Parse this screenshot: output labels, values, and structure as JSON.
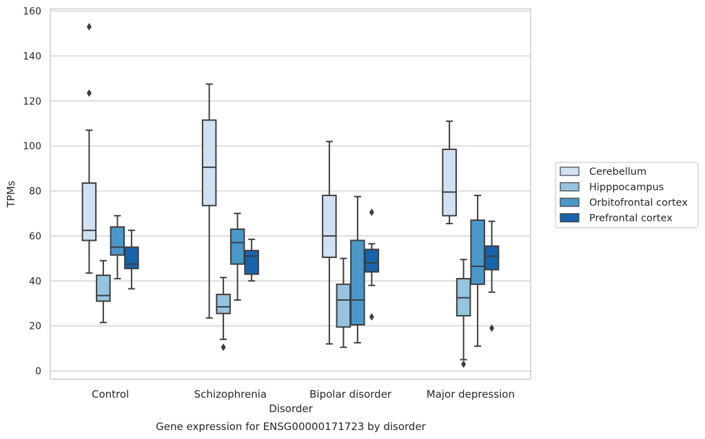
{
  "chart_data": {
    "type": "box",
    "title": "",
    "caption": "Gene expression for ENSG00000171723 by disorder",
    "xlabel": "Disorder",
    "ylabel": "TPMs",
    "ylim": [
      -4,
      161
    ],
    "yticks": [
      0,
      20,
      40,
      60,
      80,
      100,
      120,
      140,
      160
    ],
    "grid": "horizontal",
    "legend_position": "right",
    "categories": [
      "Control",
      "Schizophrenia",
      "Bipolar disorder",
      "Major depression"
    ],
    "series": [
      {
        "name": "Cerebellum",
        "color": "#d0e1f2",
        "boxes": [
          {
            "whislo": 43.5,
            "q1": 58,
            "med": 62.5,
            "q3": 83.5,
            "whishi": 107,
            "fliers": [
              123.5,
              153
            ]
          },
          {
            "whislo": 23.5,
            "q1": 73.5,
            "med": 90.5,
            "q3": 111.5,
            "whishi": 127.5,
            "fliers": []
          },
          {
            "whislo": 12,
            "q1": 50.5,
            "med": 60,
            "q3": 78,
            "whishi": 102,
            "fliers": []
          },
          {
            "whislo": 65.5,
            "q1": 69,
            "med": 79.5,
            "q3": 98.5,
            "whishi": 111,
            "fliers": []
          }
        ]
      },
      {
        "name": "Hipppocampus",
        "color": "#94c4df",
        "boxes": [
          {
            "whislo": 21.5,
            "q1": 31,
            "med": 33.5,
            "q3": 42.5,
            "whishi": 49,
            "fliers": []
          },
          {
            "whislo": 14,
            "q1": 25.5,
            "med": 28.5,
            "q3": 34,
            "whishi": 41.5,
            "fliers": [
              10.5
            ]
          },
          {
            "whislo": 10.5,
            "q1": 19.5,
            "med": 31.5,
            "q3": 38.5,
            "whishi": 50,
            "fliers": []
          },
          {
            "whislo": 5,
            "q1": 24.5,
            "med": 32.5,
            "q3": 41,
            "whishi": 49.5,
            "fliers": [
              3
            ]
          }
        ]
      },
      {
        "name": "Orbitofrontal cortex",
        "color": "#4a98c9",
        "boxes": [
          {
            "whislo": 41,
            "q1": 51.5,
            "med": 55,
            "q3": 64,
            "whishi": 69,
            "fliers": []
          },
          {
            "whislo": 31.5,
            "q1": 47.5,
            "med": 57,
            "q3": 63,
            "whishi": 70,
            "fliers": []
          },
          {
            "whislo": 12.5,
            "q1": 20.5,
            "med": 31.5,
            "q3": 58,
            "whishi": 77.5,
            "fliers": []
          },
          {
            "whislo": 11,
            "q1": 38.5,
            "med": 46.5,
            "q3": 67,
            "whishi": 78,
            "fliers": []
          }
        ]
      },
      {
        "name": "Prefrontal cortex",
        "color": "#1864aa",
        "boxes": [
          {
            "whislo": 36.5,
            "q1": 45.5,
            "med": 47.5,
            "q3": 55,
            "whishi": 62.5,
            "fliers": []
          },
          {
            "whislo": 40,
            "q1": 43,
            "med": 51,
            "q3": 53.5,
            "whishi": 58.5,
            "fliers": []
          },
          {
            "whislo": 38,
            "q1": 44,
            "med": 48,
            "q3": 54,
            "whishi": 56.5,
            "fliers": [
              24,
              70.5
            ]
          },
          {
            "whislo": 35,
            "q1": 45,
            "med": 51,
            "q3": 55.5,
            "whishi": 66.5,
            "fliers": [
              19
            ]
          }
        ]
      }
    ]
  }
}
